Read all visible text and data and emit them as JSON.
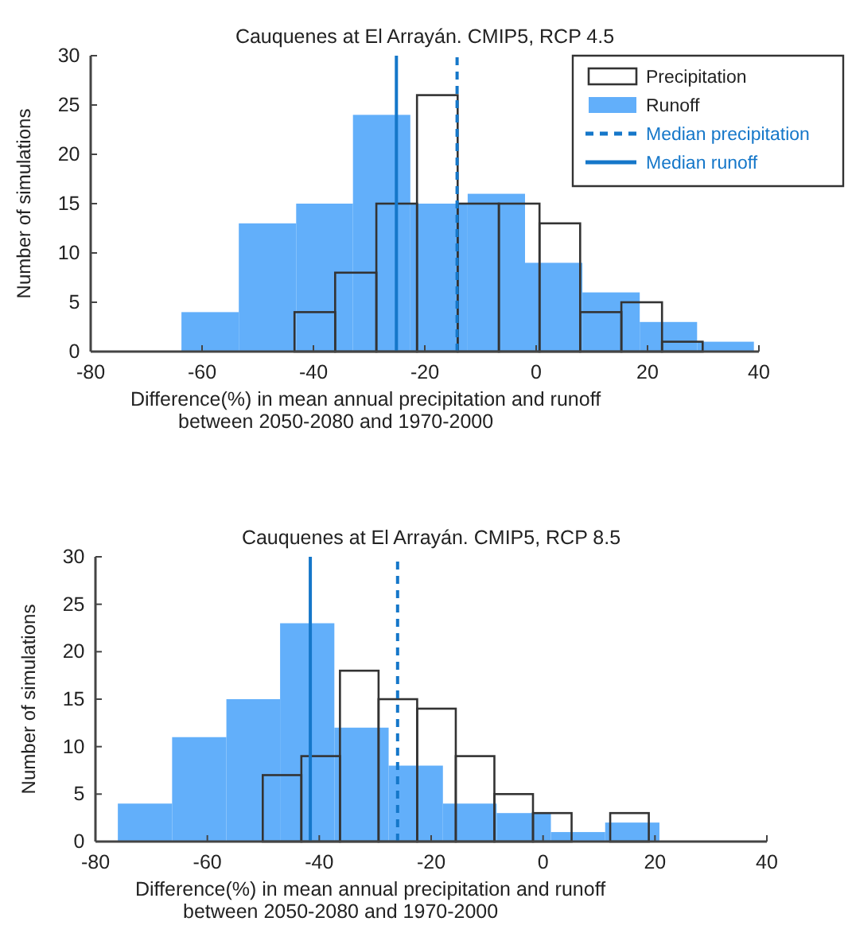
{
  "chart_data": [
    {
      "type": "histogram",
      "title": "Cauquenes at El Arrayán. CMIP5, RCP 4.5",
      "xlabel": "Difference(%) in mean annual precipitation and runoff\nbetween 2050-2080 and 1970-2000",
      "ylabel": "Number of simulations",
      "xlim": [
        -80,
        40
      ],
      "xticks": [
        -80,
        -60,
        -40,
        -20,
        0,
        20,
        40
      ],
      "ylim": [
        0,
        30
      ],
      "yticks": [
        0,
        5,
        10,
        15,
        20,
        25,
        30
      ],
      "legend": "top right",
      "bins": [
        -43.4,
        -36.1,
        -28.7,
        -21.4,
        -14.1,
        -6.7,
        0.6,
        7.9,
        15.3,
        22.6,
        29.9
      ],
      "series": [
        {
          "name": "Precipitation",
          "color": "#333333",
          "values": [
            4,
            8,
            15,
            26,
            15,
            15,
            13,
            4,
            5,
            1
          ]
        },
        {
          "name": "Runoff",
          "color": "#62affa",
          "bins": [
            -63.7,
            -53.4,
            -43.1,
            -32.9,
            -22.6,
            -12.3,
            -2.0,
            8.3,
            18.6,
            28.9,
            39.1
          ],
          "values": [
            4,
            13,
            15,
            24,
            15,
            16,
            9,
            6,
            3,
            1
          ]
        }
      ],
      "ref_lines": [
        {
          "axis": "x",
          "value": -14.2,
          "label": "Median precipitation",
          "color": "#1577c9",
          "line_style": "dashed"
        },
        {
          "axis": "x",
          "value": -25.1,
          "label": "Median runoff",
          "color": "#1577c9",
          "line_style": "solid"
        }
      ]
    },
    {
      "type": "histogram",
      "title": "Cauquenes at El Arrayán. CMIP5, RCP 8.5",
      "xlabel": "Difference(%) in mean annual precipitation and runoff\nbetween 2050-2080 and 1970-2000",
      "ylabel": "Number of simulations",
      "xlim": [
        -80,
        40
      ],
      "xticks": [
        -80,
        -60,
        -40,
        -20,
        0,
        20,
        40
      ],
      "ylim": [
        0,
        30
      ],
      "yticks": [
        0,
        5,
        10,
        15,
        20,
        25,
        30
      ],
      "bins": [
        -50.1,
        -43.2,
        -36.3,
        -29.4,
        -22.5,
        -15.6,
        -8.7,
        -1.8,
        5.1,
        12.0,
        18.9
      ],
      "series": [
        {
          "color": "#333333",
          "values": [
            7,
            9,
            18,
            15,
            14,
            9,
            5,
            3,
            0,
            3
          ]
        },
        {
          "color": "#62affa",
          "bins": [
            -76.0,
            -66.3,
            -56.6,
            -47.0,
            -37.3,
            -27.6,
            -17.9,
            -8.3,
            1.4,
            11.1,
            20.8
          ],
          "values": [
            4,
            11,
            15,
            23,
            12,
            8,
            4,
            3,
            1,
            2
          ]
        }
      ],
      "ref_lines": [
        {
          "axis": "x",
          "value": -26.0,
          "color": "#1577c9",
          "line_style": "dashed"
        },
        {
          "axis": "x",
          "value": -41.6,
          "color": "#1577c9",
          "line_style": "solid"
        }
      ]
    }
  ]
}
